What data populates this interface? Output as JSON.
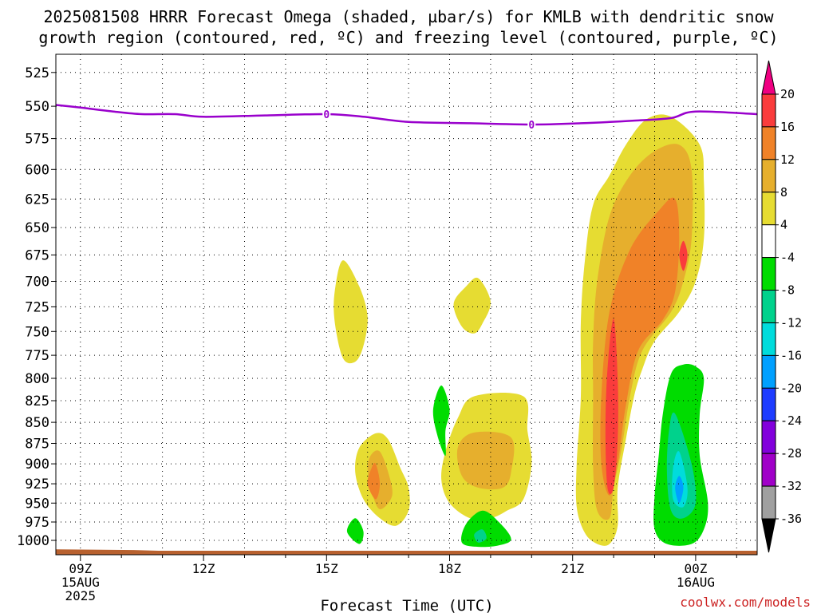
{
  "title": {
    "line1": "2025081508 HRRR Forecast Omega (shaded, µbar/s) for KMLB with dendritic snow",
    "line2": "growth region (contoured, red, ºC) and freezing level (contoured, purple, ºC)"
  },
  "credit": "coolwx.com/models",
  "colors": {
    "freezing_level": "#9900cc",
    "ground": "#b8612f",
    "positive_4": "#e6dc32",
    "positive_8": "#e6af2d",
    "positive_12": "#f08228",
    "positive_16": "#fa3c3c",
    "positive_20": "#f00082",
    "negative_4": "#00dc00",
    "negative_8": "#00d28c",
    "negative_12": "#00dcdc",
    "negative_16": "#00a0ff",
    "negative_20": "#1e3cff",
    "negative_24": "#8200dc",
    "negative_28": "#a000c8",
    "negative_32": "#a0a0a0",
    "negative_36": "#000000"
  },
  "chart_data": {
    "type": "heatmap",
    "title": "2025081508 HRRR Forecast Omega (shaded, µbar/s) for KMLB with dendritic snow growth region (contoured, red, ºC) and freezing level (contoured, purple, ºC)",
    "xlabel": "Forecast Time (UTC)",
    "ylabel": "",
    "x_unit": "forecast hour from 2025-08-15 09Z",
    "xlim": [
      -0.6,
      16.5
    ],
    "y_ticks": [
      525,
      550,
      575,
      600,
      625,
      650,
      675,
      700,
      725,
      750,
      775,
      800,
      825,
      850,
      875,
      900,
      925,
      950,
      975,
      1000
    ],
    "y_tick_labels": [
      "525",
      "550",
      "575",
      "600",
      "625",
      "650",
      "675",
      "700",
      "725",
      "750",
      "775",
      "800",
      "825",
      "850",
      "875",
      "900",
      "925",
      "950",
      "975",
      "1000"
    ],
    "ylim": [
      512,
      1020
    ],
    "y_scale": "log pressure (hPa), inverted",
    "x_ticks": [
      {
        "x": 0,
        "line1": "09Z",
        "line2": "15AUG",
        "line3": "2025"
      },
      {
        "x": 3,
        "line1": "12Z",
        "line2": "",
        "line3": ""
      },
      {
        "x": 6,
        "line1": "15Z",
        "line2": "",
        "line3": ""
      },
      {
        "x": 9,
        "line1": "18Z",
        "line2": "",
        "line3": ""
      },
      {
        "x": 12,
        "line1": "21Z",
        "line2": "",
        "line3": ""
      },
      {
        "x": 15,
        "line1": "00Z",
        "line2": "16AUG",
        "line3": ""
      }
    ],
    "grid": true,
    "colorbar": {
      "labels": [
        "20",
        "16",
        "12",
        "8",
        "4",
        "-4",
        "-8",
        "-12",
        "-16",
        "-20",
        "-24",
        "-28",
        "-32",
        "-36"
      ],
      "bands": [
        "#f00082",
        "#fa3c3c",
        "#f08228",
        "#e6af2d",
        "#e6dc32",
        "#ffffff",
        "#00dc00",
        "#00d28c",
        "#00dcdc",
        "#00a0ff",
        "#1e3cff",
        "#8200dc",
        "#a000c8",
        "#a0a0a0",
        "#000000"
      ]
    },
    "freezing_level": {
      "label": "0",
      "label_x": [
        6.0,
        11.0
      ],
      "points": [
        [
          -0.6,
          549
        ],
        [
          0,
          551
        ],
        [
          0.8,
          554
        ],
        [
          1.5,
          556
        ],
        [
          2.3,
          556
        ],
        [
          3.0,
          558
        ],
        [
          4.5,
          557
        ],
        [
          6.0,
          556
        ],
        [
          6.9,
          558
        ],
        [
          8.0,
          562
        ],
        [
          9.5,
          563
        ],
        [
          11.0,
          564
        ],
        [
          12.2,
          563
        ],
        [
          13.5,
          561
        ],
        [
          14.4,
          559
        ],
        [
          15.0,
          554
        ],
        [
          16.5,
          556
        ]
      ]
    },
    "ground": {
      "pressure": 1015,
      "points": [
        [
          -0.6,
          1013
        ],
        [
          1.3,
          1014
        ],
        [
          1.9,
          1015
        ],
        [
          16.5,
          1015
        ]
      ]
    },
    "omega_regions": [
      {
        "level": 4,
        "points": [
          [
            6.4,
            680
          ],
          [
            6.8,
            705
          ],
          [
            7.0,
            735
          ],
          [
            6.9,
            765
          ],
          [
            6.7,
            782
          ],
          [
            6.4,
            778
          ],
          [
            6.2,
            740
          ],
          [
            6.2,
            710
          ]
        ]
      },
      {
        "level": 4,
        "points": [
          [
            9.7,
            697
          ],
          [
            10.0,
            720
          ],
          [
            9.8,
            742
          ],
          [
            9.6,
            752
          ],
          [
            9.3,
            745
          ],
          [
            9.1,
            722
          ],
          [
            9.4,
            705
          ]
        ]
      },
      {
        "level": 4,
        "points": [
          [
            7.5,
            870
          ],
          [
            7.8,
            905
          ],
          [
            8.0,
            930
          ],
          [
            8.0,
            960
          ],
          [
            7.7,
            980
          ],
          [
            7.3,
            970
          ],
          [
            6.9,
            945
          ],
          [
            6.7,
            910
          ],
          [
            6.8,
            880
          ],
          [
            7.2,
            863
          ]
        ]
      },
      {
        "level": 8,
        "points": [
          [
            7.3,
            885
          ],
          [
            7.5,
            910
          ],
          [
            7.6,
            940
          ],
          [
            7.3,
            958
          ],
          [
            7.1,
            935
          ],
          [
            7.0,
            905
          ],
          [
            7.1,
            888
          ]
        ]
      },
      {
        "level": 12,
        "points": [
          [
            7.2,
            900
          ],
          [
            7.3,
            925
          ],
          [
            7.2,
            945
          ],
          [
            7.0,
            925
          ],
          [
            7.1,
            905
          ]
        ]
      },
      {
        "level": 4,
        "points": [
          [
            9.6,
            820
          ],
          [
            10.8,
            820
          ],
          [
            10.9,
            860
          ],
          [
            11.0,
            900
          ],
          [
            10.8,
            945
          ],
          [
            10.4,
            960
          ],
          [
            10.0,
            970
          ],
          [
            9.5,
            970
          ],
          [
            9.0,
            950
          ],
          [
            8.8,
            920
          ],
          [
            8.9,
            885
          ],
          [
            9.2,
            845
          ]
        ]
      },
      {
        "level": 8,
        "points": [
          [
            9.6,
            862
          ],
          [
            10.5,
            868
          ],
          [
            10.5,
            910
          ],
          [
            10.3,
            930
          ],
          [
            9.7,
            930
          ],
          [
            9.3,
            915
          ],
          [
            9.2,
            880
          ]
        ]
      },
      {
        "level": -4,
        "points": [
          [
            8.8,
            808
          ],
          [
            9.0,
            835
          ],
          [
            8.9,
            860
          ],
          [
            8.9,
            890
          ],
          [
            8.7,
            865
          ],
          [
            8.6,
            835
          ]
        ]
      },
      {
        "level": -4,
        "points": [
          [
            6.7,
            970
          ],
          [
            6.9,
            988
          ],
          [
            6.8,
            1005
          ],
          [
            6.5,
            988
          ]
        ]
      },
      {
        "level": -4,
        "points": [
          [
            9.8,
            960
          ],
          [
            10.2,
            975
          ],
          [
            10.5,
            998
          ],
          [
            10.2,
            1007
          ],
          [
            9.7,
            1009
          ],
          [
            9.3,
            1003
          ],
          [
            9.4,
            978
          ]
        ]
      },
      {
        "level": -8,
        "points": [
          [
            9.8,
            985
          ],
          [
            9.9,
            997
          ],
          [
            9.7,
            1003
          ],
          [
            9.6,
            992
          ]
        ]
      },
      {
        "level": 4,
        "points": [
          [
            14.4,
            558
          ],
          [
            15.1,
            580
          ],
          [
            15.2,
            610
          ],
          [
            15.2,
            660
          ],
          [
            15.0,
            700
          ],
          [
            14.6,
            730
          ],
          [
            14.0,
            760
          ],
          [
            13.7,
            790
          ],
          [
            13.5,
            820
          ],
          [
            13.3,
            870
          ],
          [
            13.1,
            930
          ],
          [
            13.1,
            980
          ],
          [
            12.9,
            1005
          ],
          [
            12.6,
            1005
          ],
          [
            12.3,
            990
          ],
          [
            12.1,
            955
          ],
          [
            12.1,
            900
          ],
          [
            12.2,
            820
          ],
          [
            12.2,
            740
          ],
          [
            12.3,
            680
          ],
          [
            12.5,
            630
          ],
          [
            12.9,
            605
          ],
          [
            13.3,
            580
          ],
          [
            13.8,
            560
          ]
        ]
      },
      {
        "level": 8,
        "points": [
          [
            14.6,
            580
          ],
          [
            14.9,
            600
          ],
          [
            14.9,
            660
          ],
          [
            14.7,
            700
          ],
          [
            14.4,
            730
          ],
          [
            13.7,
            770
          ],
          [
            13.4,
            820
          ],
          [
            13.2,
            880
          ],
          [
            13.0,
            930
          ],
          [
            12.9,
            970
          ],
          [
            12.6,
            960
          ],
          [
            12.5,
            905
          ],
          [
            12.5,
            820
          ],
          [
            12.5,
            760
          ],
          [
            12.6,
            700
          ],
          [
            12.9,
            640
          ],
          [
            13.4,
            605
          ],
          [
            14.0,
            585
          ]
        ]
      },
      {
        "level": 12,
        "points": [
          [
            14.5,
            625
          ],
          [
            14.6,
            660
          ],
          [
            14.5,
            710
          ],
          [
            14.2,
            738
          ],
          [
            13.6,
            770
          ],
          [
            13.3,
            830
          ],
          [
            13.1,
            900
          ],
          [
            12.9,
            940
          ],
          [
            12.7,
            900
          ],
          [
            12.7,
            820
          ],
          [
            12.9,
            730
          ],
          [
            13.4,
            670
          ],
          [
            14.1,
            635
          ]
        ]
      },
      {
        "level": 16,
        "points": [
          [
            14.7,
            662
          ],
          [
            14.8,
            675
          ],
          [
            14.7,
            690
          ],
          [
            14.6,
            675
          ]
        ]
      },
      {
        "level": 16,
        "points": [
          [
            13.0,
            737
          ],
          [
            13.1,
            800
          ],
          [
            13.1,
            870
          ],
          [
            13.0,
            930
          ],
          [
            12.85,
            930
          ],
          [
            12.8,
            860
          ],
          [
            12.85,
            790
          ]
        ]
      },
      {
        "level": -4,
        "points": [
          [
            15.0,
            787
          ],
          [
            15.2,
            800
          ],
          [
            15.1,
            840
          ],
          [
            15.1,
            890
          ],
          [
            15.3,
            950
          ],
          [
            15.2,
            985
          ],
          [
            14.9,
            1005
          ],
          [
            14.3,
            1005
          ],
          [
            14.0,
            985
          ],
          [
            14.0,
            940
          ],
          [
            14.1,
            890
          ],
          [
            14.2,
            840
          ],
          [
            14.4,
            795
          ],
          [
            14.7,
            785
          ]
        ]
      },
      {
        "level": -8,
        "points": [
          [
            14.5,
            840
          ],
          [
            14.9,
            900
          ],
          [
            15.0,
            950
          ],
          [
            14.7,
            970
          ],
          [
            14.4,
            960
          ],
          [
            14.3,
            910
          ],
          [
            14.35,
            860
          ]
        ]
      },
      {
        "level": -12,
        "points": [
          [
            14.6,
            885
          ],
          [
            14.8,
            930
          ],
          [
            14.7,
            955
          ],
          [
            14.45,
            945
          ],
          [
            14.45,
            905
          ]
        ]
      },
      {
        "level": -16,
        "points": [
          [
            14.6,
            915
          ],
          [
            14.7,
            930
          ],
          [
            14.6,
            950
          ],
          [
            14.5,
            930
          ]
        ]
      }
    ]
  }
}
